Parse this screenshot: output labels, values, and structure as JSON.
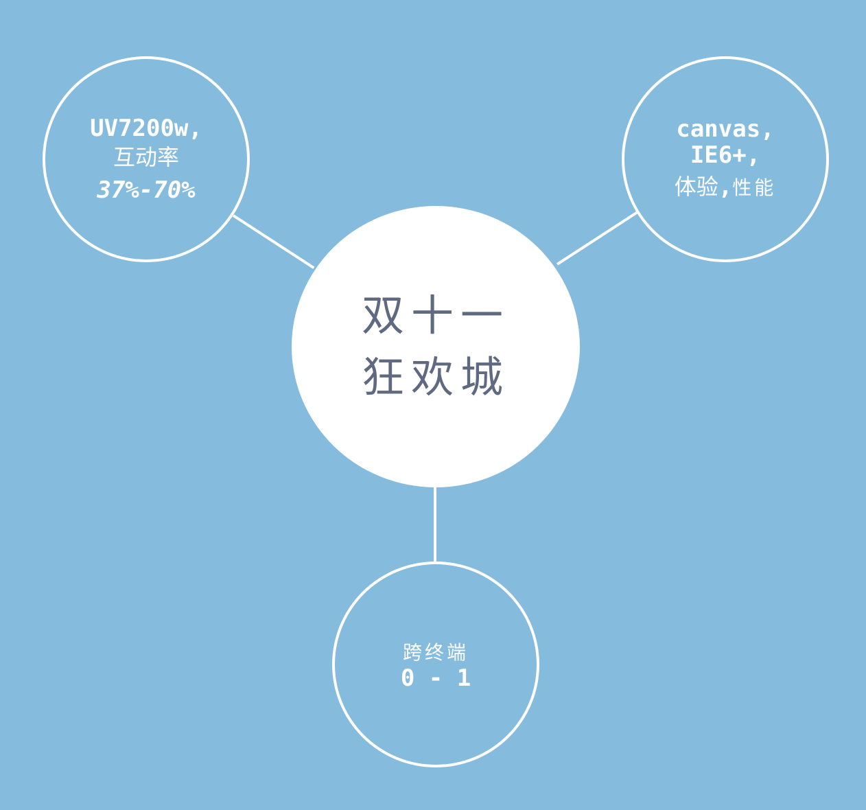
{
  "diagram": {
    "background_color": "#85bbdc",
    "line_color": "#ffffff",
    "center": {
      "line1": "双十一",
      "line2": "狂欢城"
    },
    "left_node": {
      "line1": "UV7200w,",
      "line2": "互动率",
      "line3": "37%-70%"
    },
    "right_node": {
      "line1": "canvas,",
      "line2": "IE6+,",
      "line3_a": "体验",
      "line3_b": ",",
      "line3_c": "性能"
    },
    "bottom_node": {
      "line1": "跨终端",
      "line2": "0 - 1"
    }
  }
}
